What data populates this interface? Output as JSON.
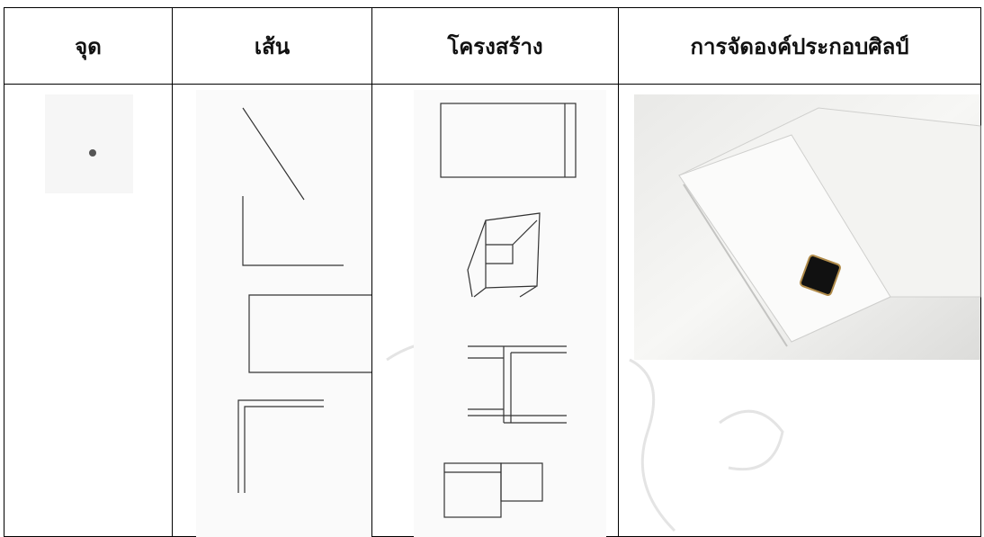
{
  "table": {
    "header": [
      "จุด",
      "เส้น",
      "โครงสร้าง",
      "การจัดองค์ประกอบศิลป์"
    ]
  }
}
